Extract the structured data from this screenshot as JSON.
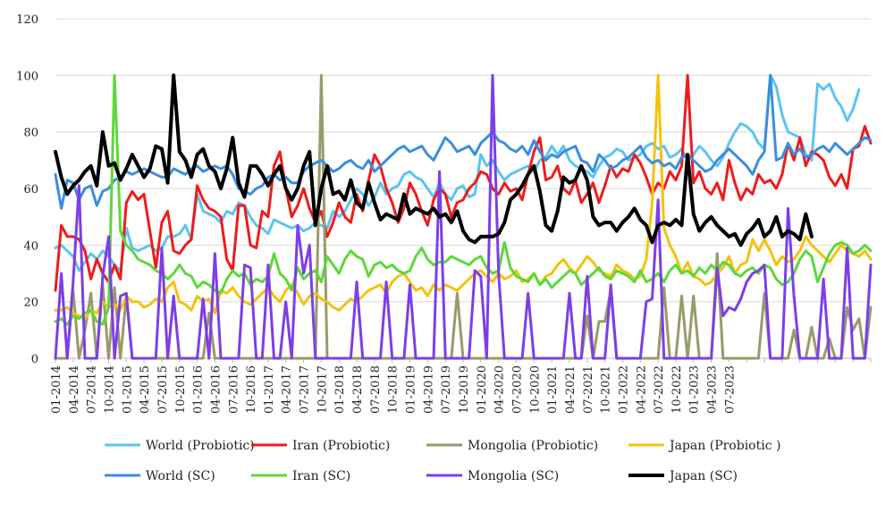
{
  "chart_data": {
    "type": "line",
    "title": "",
    "xlabel": "",
    "ylabel": "",
    "ylim": [
      0,
      120
    ],
    "yticks": [
      0,
      20,
      40,
      60,
      80,
      100,
      120
    ],
    "grid": "horizontal",
    "legend_position": "bottom",
    "x_start": "2014-01",
    "x_labels": [
      "01-2014",
      "04-2014",
      "07-2014",
      "10-2014",
      "01-2015",
      "04-2015",
      "07-2015",
      "10-2015",
      "01-2016",
      "04-2016",
      "07-2016",
      "10-2016",
      "01-2017",
      "04-2017",
      "07-2017",
      "10-2017",
      "01-2018",
      "04-2018",
      "07-2018",
      "10-2018",
      "01-2019",
      "04-2019",
      "07-2019",
      "10-2019",
      "01-2020",
      "04-2020",
      "07-2020",
      "10-2020",
      "01-2021",
      "04-2021",
      "07-2021",
      "10-2021",
      "01-2022",
      "04-2022",
      "07-2022",
      "10-2022",
      "01-2023",
      "04-2023",
      "07-2023"
    ],
    "series": [
      {
        "name": "World (Probiotic)",
        "color": "#5bc4f0",
        "width": 3,
        "values": [
          39,
          40,
          38,
          36,
          31,
          34,
          37,
          35,
          38,
          36,
          33,
          31,
          46,
          39,
          38,
          39,
          40,
          38,
          39,
          43,
          43,
          44,
          47,
          42,
          58,
          52,
          51,
          50,
          48,
          52,
          51,
          55,
          54,
          50,
          47,
          46,
          44,
          49,
          48,
          47,
          46,
          47,
          45,
          46,
          48,
          47,
          46,
          52,
          50,
          52,
          56,
          60,
          58,
          54,
          57,
          62,
          58,
          60,
          61,
          65,
          66,
          64,
          63,
          60,
          57,
          62,
          58,
          56,
          60,
          61,
          57,
          58,
          72,
          68,
          70,
          66,
          63,
          65,
          66,
          67,
          68,
          66,
          70,
          71,
          75,
          72,
          75,
          70,
          68,
          67,
          66,
          64,
          68,
          71,
          72,
          74,
          73,
          70,
          71,
          72,
          75,
          76,
          74,
          75,
          71,
          72,
          74,
          70,
          72,
          75,
          73,
          70,
          68,
          71,
          76,
          80,
          83,
          82,
          80,
          76,
          74,
          100,
          96,
          86,
          80,
          79,
          78,
          72,
          70,
          97,
          95,
          97,
          92,
          89,
          84,
          88,
          95
        ]
      },
      {
        "name": "Iran (Probiotic)",
        "color": "#ee1c1c",
        "width": 3,
        "values": [
          24,
          47,
          43,
          43,
          42,
          38,
          28,
          35,
          30,
          27,
          33,
          28,
          55,
          59,
          56,
          58,
          45,
          32,
          48,
          52,
          38,
          37,
          40,
          42,
          61,
          56,
          53,
          52,
          50,
          35,
          31,
          54,
          54,
          40,
          39,
          52,
          50,
          68,
          73,
          60,
          50,
          54,
          60,
          53,
          48,
          52,
          43,
          48,
          55,
          50,
          48,
          58,
          52,
          63,
          72,
          68,
          60,
          55,
          48,
          53,
          62,
          58,
          52,
          47,
          56,
          60,
          58,
          50,
          55,
          56,
          60,
          62,
          66,
          65,
          60,
          58,
          62,
          59,
          60,
          56,
          65,
          73,
          78,
          63,
          64,
          68,
          60,
          58,
          63,
          55,
          58,
          62,
          55,
          61,
          68,
          64,
          67,
          66,
          72,
          69,
          64,
          58,
          62,
          60,
          66,
          63,
          68,
          100,
          62,
          66,
          60,
          58,
          62,
          56,
          70,
          62,
          56,
          60,
          58,
          65,
          62,
          63,
          60,
          65,
          76,
          70,
          78,
          68,
          73,
          72,
          70,
          64,
          61,
          65,
          60,
          74,
          75,
          82,
          76
        ]
      },
      {
        "name": "Mongolia (Probiotic)",
        "color": "#9a9a6a",
        "width": 3,
        "values": [
          0,
          0,
          0,
          24,
          0,
          10,
          23,
          0,
          26,
          0,
          25,
          0,
          22,
          0,
          0,
          0,
          0,
          0,
          0,
          0,
          0,
          0,
          0,
          0,
          0,
          0,
          16,
          0,
          0,
          0,
          0,
          0,
          0,
          0,
          0,
          0,
          0,
          0,
          0,
          0,
          0,
          0,
          0,
          0,
          0,
          100,
          0,
          0,
          0,
          0,
          0,
          0,
          0,
          0,
          0,
          0,
          0,
          0,
          0,
          0,
          0,
          0,
          0,
          0,
          0,
          0,
          0,
          0,
          23,
          0,
          0,
          0,
          0,
          0,
          0,
          0,
          0,
          0,
          0,
          0,
          0,
          0,
          0,
          0,
          0,
          0,
          0,
          0,
          0,
          0,
          15,
          0,
          13,
          13,
          24,
          0,
          0,
          0,
          0,
          0,
          0,
          0,
          0,
          25,
          0,
          0,
          22,
          0,
          22,
          0,
          0,
          0,
          37,
          0,
          0,
          0,
          0,
          0,
          0,
          0,
          23,
          0,
          0,
          0,
          0,
          10,
          0,
          0,
          11,
          0,
          0,
          7,
          0,
          0,
          18,
          10,
          14,
          0,
          18
        ]
      },
      {
        "name": "Japan (Probiotic )",
        "color": "#f4c20d",
        "width": 3,
        "values": [
          17,
          17,
          18,
          16,
          15,
          14,
          17,
          16,
          20,
          18,
          19,
          17,
          22,
          20,
          20,
          18,
          19,
          21,
          20,
          25,
          27,
          20,
          19,
          17,
          22,
          20,
          21,
          16,
          24,
          23,
          25,
          22,
          20,
          19,
          21,
          23,
          25,
          22,
          20,
          24,
          26,
          23,
          19,
          22,
          23,
          21,
          20,
          18,
          17,
          19,
          21,
          20,
          22,
          24,
          25,
          26,
          23,
          27,
          29,
          30,
          27,
          24,
          25,
          22,
          26,
          24,
          26,
          25,
          24,
          26,
          28,
          30,
          31,
          29,
          27,
          30,
          28,
          29,
          31,
          27,
          28,
          30,
          26,
          29,
          30,
          33,
          35,
          32,
          30,
          33,
          36,
          34,
          31,
          30,
          29,
          33,
          31,
          30,
          28,
          29,
          35,
          55,
          100,
          46,
          40,
          36,
          30,
          34,
          29,
          28,
          26,
          27,
          30,
          32,
          36,
          30,
          33,
          34,
          42,
          38,
          42,
          38,
          33,
          36,
          34,
          35,
          38,
          43,
          40,
          38,
          36,
          34,
          37,
          40,
          38,
          37,
          36,
          38,
          35
        ]
      },
      {
        "name": "World (SC)",
        "color": "#3a8ee0",
        "width": 3,
        "values": [
          65,
          53,
          63,
          62,
          56,
          60,
          61,
          54,
          59,
          60,
          63,
          64,
          66,
          65,
          66,
          67,
          66,
          65,
          64,
          64,
          67,
          66,
          65,
          67,
          68,
          66,
          67,
          68,
          67,
          68,
          65,
          60,
          59,
          58,
          60,
          61,
          64,
          65,
          63,
          64,
          62,
          62,
          66,
          68,
          69,
          70,
          68,
          66,
          67,
          69,
          70,
          68,
          67,
          70,
          66,
          68,
          70,
          72,
          74,
          75,
          73,
          74,
          75,
          72,
          70,
          74,
          78,
          76,
          73,
          74,
          75,
          72,
          76,
          78,
          80,
          77,
          76,
          74,
          73,
          75,
          72,
          77,
          73,
          70,
          72,
          71,
          73,
          74,
          75,
          70,
          69,
          66,
          72,
          70,
          67,
          68,
          70,
          71,
          73,
          75,
          71,
          69,
          70,
          68,
          69,
          67,
          71,
          72,
          70,
          68,
          66,
          67,
          70,
          72,
          74,
          72,
          70,
          68,
          65,
          70,
          73,
          100,
          70,
          71,
          76,
          72,
          74,
          71,
          72,
          74,
          75,
          73,
          76,
          74,
          72,
          74,
          76,
          78,
          77
        ]
      },
      {
        "name": "Iran (SC)",
        "color": "#5cd83a",
        "width": 3,
        "values": [
          13,
          14,
          12,
          15,
          14,
          16,
          17,
          13,
          12,
          18,
          100,
          45,
          40,
          38,
          35,
          34,
          33,
          31,
          30,
          28,
          30,
          33,
          30,
          29,
          25,
          27,
          26,
          24,
          23,
          28,
          31,
          29,
          30,
          26,
          28,
          27,
          29,
          37,
          30,
          28,
          24,
          32,
          28,
          30,
          31,
          27,
          36,
          33,
          30,
          35,
          38,
          36,
          35,
          29,
          33,
          34,
          32,
          33,
          31,
          30,
          31,
          36,
          39,
          35,
          33,
          34,
          34,
          36,
          35,
          34,
          33,
          35,
          36,
          32,
          30,
          31,
          41,
          32,
          29,
          28,
          27,
          30,
          26,
          28,
          25,
          27,
          29,
          31,
          30,
          26,
          28,
          30,
          32,
          29,
          28,
          31,
          30,
          29,
          27,
          31,
          27,
          28,
          30,
          27,
          31,
          33,
          30,
          31,
          29,
          32,
          30,
          33,
          31,
          34,
          33,
          30,
          29,
          31,
          32,
          30,
          33,
          32,
          28,
          26,
          27,
          30,
          35,
          38,
          36,
          27,
          32,
          37,
          40,
          41,
          40,
          37,
          38,
          40,
          38
        ]
      },
      {
        "name": "Mongolia (SC)",
        "color": "#7d3ee6",
        "width": 3,
        "values": [
          0,
          30,
          0,
          27,
          61,
          0,
          0,
          0,
          29,
          43,
          0,
          22,
          23,
          0,
          0,
          0,
          0,
          0,
          39,
          0,
          22,
          0,
          0,
          0,
          0,
          21,
          0,
          37,
          0,
          0,
          0,
          0,
          33,
          32,
          0,
          0,
          33,
          0,
          0,
          20,
          0,
          47,
          30,
          40,
          0,
          0,
          0,
          0,
          0,
          0,
          0,
          27,
          0,
          0,
          0,
          0,
          27,
          0,
          0,
          0,
          26,
          0,
          0,
          0,
          0,
          66,
          0,
          0,
          0,
          0,
          0,
          31,
          29,
          0,
          100,
          30,
          0,
          0,
          0,
          0,
          23,
          0,
          0,
          0,
          0,
          0,
          0,
          23,
          0,
          0,
          29,
          0,
          0,
          0,
          26,
          0,
          0,
          0,
          0,
          0,
          20,
          21,
          56,
          0,
          0,
          0,
          0,
          0,
          0,
          0,
          0,
          0,
          32,
          15,
          18,
          17,
          21,
          27,
          30,
          31,
          33,
          0,
          0,
          0,
          53,
          22,
          0,
          0,
          0,
          0,
          28,
          0,
          0,
          0,
          39,
          0,
          0,
          0,
          33
        ]
      },
      {
        "name": "Japan (SC)",
        "color": "#000000",
        "width": 4,
        "values": [
          73,
          64,
          58,
          61,
          63,
          66,
          68,
          61,
          80,
          68,
          69,
          63,
          67,
          72,
          68,
          64,
          67,
          75,
          74,
          62,
          100,
          73,
          70,
          64,
          72,
          74,
          68,
          66,
          60,
          67,
          78,
          62,
          57,
          68,
          68,
          65,
          61,
          65,
          68,
          60,
          56,
          60,
          68,
          73,
          47,
          60,
          68,
          58,
          59,
          56,
          63,
          55,
          53,
          62,
          55,
          49,
          51,
          50,
          49,
          58,
          51,
          53,
          52,
          51,
          53,
          50,
          51,
          48,
          52,
          45,
          42,
          41,
          43,
          43,
          43,
          44,
          48,
          56,
          58,
          61,
          65,
          68,
          59,
          47,
          45,
          52,
          64,
          62,
          63,
          68,
          63,
          50,
          47,
          48,
          48,
          45,
          48,
          50,
          53,
          49,
          47,
          41,
          47,
          48,
          47,
          49,
          47,
          72,
          51,
          45,
          48,
          50,
          47,
          45,
          43,
          44,
          40,
          44,
          46,
          49,
          43,
          45,
          50,
          43,
          45,
          44,
          42,
          51,
          43
        ]
      }
    ]
  }
}
